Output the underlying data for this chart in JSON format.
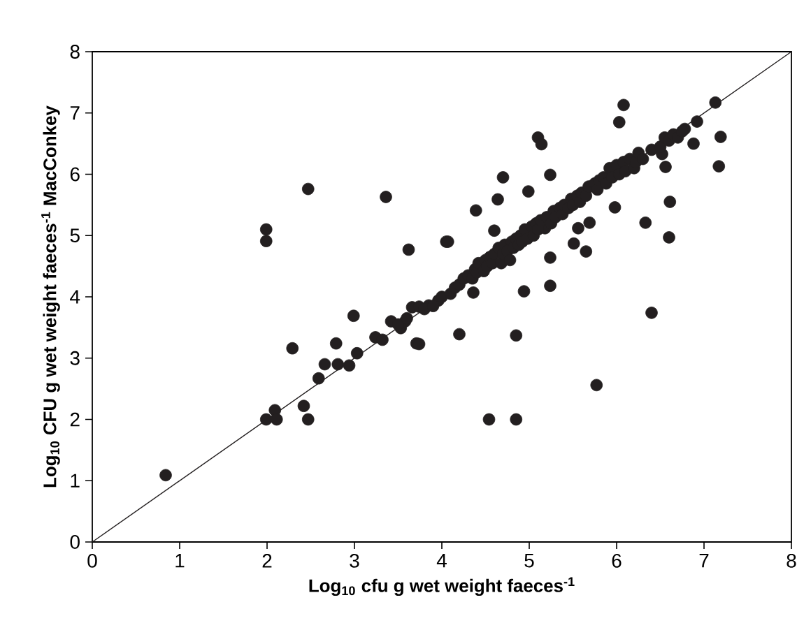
{
  "chart_data": {
    "type": "scatter",
    "xlabel": "Log$_{10}$ cfu g wet weight faeces$^{-1}$",
    "ylabel": "Log$_{10}$ CFU g wet weight faeces$^{-1}$ MacConkey",
    "xlim": [
      0,
      8
    ],
    "ylim": [
      0,
      8
    ],
    "xticks": [
      0,
      1,
      2,
      3,
      4,
      5,
      6,
      7,
      8
    ],
    "yticks": [
      0,
      1,
      2,
      3,
      4,
      5,
      6,
      7,
      8
    ],
    "grid": false,
    "series": [
      {
        "color": "#231f20",
        "marker": "circle",
        "x": [
          0.84,
          1.99,
          2.09,
          2.11,
          2.42,
          2.47,
          1.99,
          1.99,
          2.47,
          2.29,
          2.79,
          2.99,
          2.59,
          2.66,
          2.81,
          2.94,
          3.03,
          3.24,
          3.32,
          3.42,
          3.53,
          3.58,
          3.66,
          3.74,
          3.85,
          3.96,
          3.36,
          3.62,
          3.71,
          3.74,
          4.05,
          4.07,
          4.2,
          4.36,
          4.54,
          4.85,
          4.85,
          4.94,
          5.24,
          5.24,
          5.77,
          6.4,
          6.6,
          6.33,
          6.61,
          6.56,
          6.52,
          6.78,
          6.92,
          6.88,
          7.13,
          7.19,
          7.17,
          6.08,
          6.03,
          5.1,
          5.14,
          4.7,
          4.64,
          4.39,
          5.24,
          4.99,
          4.6,
          5.51,
          5.65,
          5.69,
          5.56,
          5.98,
          5.18,
          3.5,
          3.6,
          3.8,
          3.9,
          4.0,
          4.1,
          4.15,
          4.2,
          4.25,
          4.3,
          4.35,
          4.38,
          4.4,
          4.42,
          4.48,
          4.5,
          4.52,
          4.55,
          4.58,
          4.6,
          4.65,
          4.68,
          4.7,
          4.72,
          4.75,
          4.78,
          4.8,
          4.82,
          4.85,
          4.88,
          4.9,
          4.92,
          4.95,
          4.98,
          5.03,
          5.05,
          5.08,
          5.1,
          5.13,
          5.2,
          5.25,
          5.28,
          5.3,
          5.35,
          5.38,
          5.4,
          5.45,
          5.48,
          5.5,
          5.55,
          5.58,
          5.6,
          5.65,
          5.68,
          5.75,
          5.78,
          5.8,
          5.85,
          5.88,
          5.92,
          5.95,
          6.0,
          6.03,
          6.08,
          6.1,
          6.15,
          6.2,
          6.22,
          6.25,
          6.3,
          6.4,
          6.5,
          6.55,
          6.6,
          6.65,
          6.7,
          6.75
        ],
        "values": [
          1.09,
          2.0,
          2.15,
          2.0,
          2.22,
          2.0,
          5.1,
          4.91,
          5.76,
          3.16,
          3.24,
          3.69,
          2.67,
          2.9,
          2.9,
          2.88,
          3.08,
          3.34,
          3.3,
          3.6,
          3.49,
          3.6,
          3.83,
          3.84,
          3.86,
          3.94,
          5.63,
          4.77,
          3.24,
          3.23,
          4.9,
          4.9,
          3.39,
          4.07,
          2.0,
          2.0,
          3.37,
          4.09,
          4.18,
          4.64,
          2.56,
          3.74,
          4.97,
          5.21,
          5.55,
          6.12,
          6.33,
          6.74,
          6.86,
          6.5,
          7.17,
          6.61,
          6.13,
          7.13,
          6.85,
          6.6,
          6.49,
          5.95,
          5.59,
          5.41,
          5.99,
          5.72,
          5.08,
          4.87,
          4.74,
          5.21,
          5.12,
          5.46,
          5.12,
          3.55,
          3.65,
          3.8,
          3.85,
          4.0,
          4.05,
          4.15,
          4.2,
          4.3,
          4.35,
          4.3,
          4.45,
          4.4,
          4.55,
          4.42,
          4.6,
          4.5,
          4.65,
          4.55,
          4.7,
          4.8,
          4.55,
          4.7,
          4.85,
          4.75,
          4.6,
          4.9,
          4.8,
          4.95,
          4.85,
          5.0,
          4.9,
          5.1,
          4.95,
          5.15,
          5.0,
          5.2,
          5.1,
          5.25,
          5.3,
          5.2,
          5.4,
          5.3,
          5.45,
          5.35,
          5.5,
          5.45,
          5.6,
          5.5,
          5.65,
          5.55,
          5.7,
          5.65,
          5.8,
          5.85,
          5.75,
          5.9,
          5.95,
          5.85,
          6.1,
          5.95,
          6.15,
          6.0,
          6.2,
          6.05,
          6.25,
          6.1,
          6.2,
          6.35,
          6.25,
          6.4,
          6.45,
          6.6,
          6.55,
          6.65,
          6.6,
          6.7
        ]
      },
      {
        "type": "line",
        "color": "#231f20",
        "marker": "none",
        "x": [
          0,
          8
        ],
        "values": [
          0,
          8
        ]
      }
    ]
  }
}
